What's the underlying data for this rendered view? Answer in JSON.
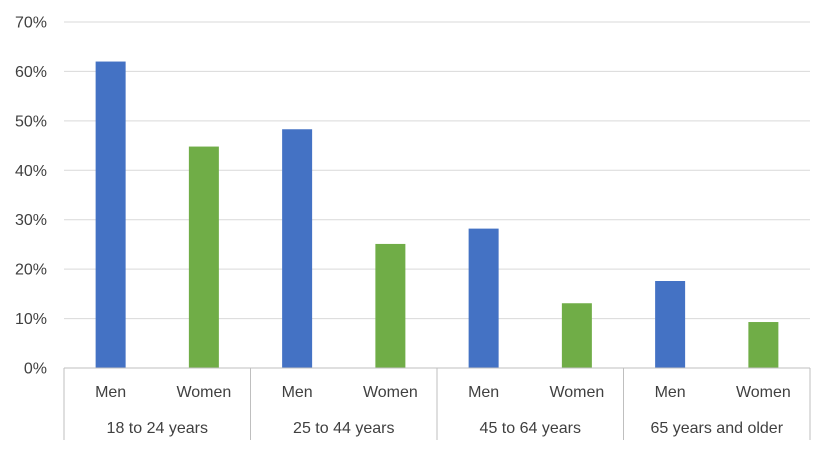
{
  "chart_data": {
    "type": "bar",
    "groups": [
      "18 to 24 years",
      "25 to 44 years",
      "45 to 64 years",
      "65 years and older"
    ],
    "sub_categories": [
      "Men",
      "Women"
    ],
    "series": [
      {
        "values": [
          62,
          48.3,
          28.2,
          17.6
        ],
        "color": "#4472C4"
      },
      {
        "values": [
          44.8,
          25.1,
          13.1,
          9.3
        ],
        "color": "#70AD47"
      }
    ],
    "y_ticks": [
      "0%",
      "10%",
      "20%",
      "30%",
      "40%",
      "50%",
      "60%",
      "70%"
    ],
    "ylim": [
      0,
      70
    ],
    "grid": true,
    "legend": "none"
  }
}
